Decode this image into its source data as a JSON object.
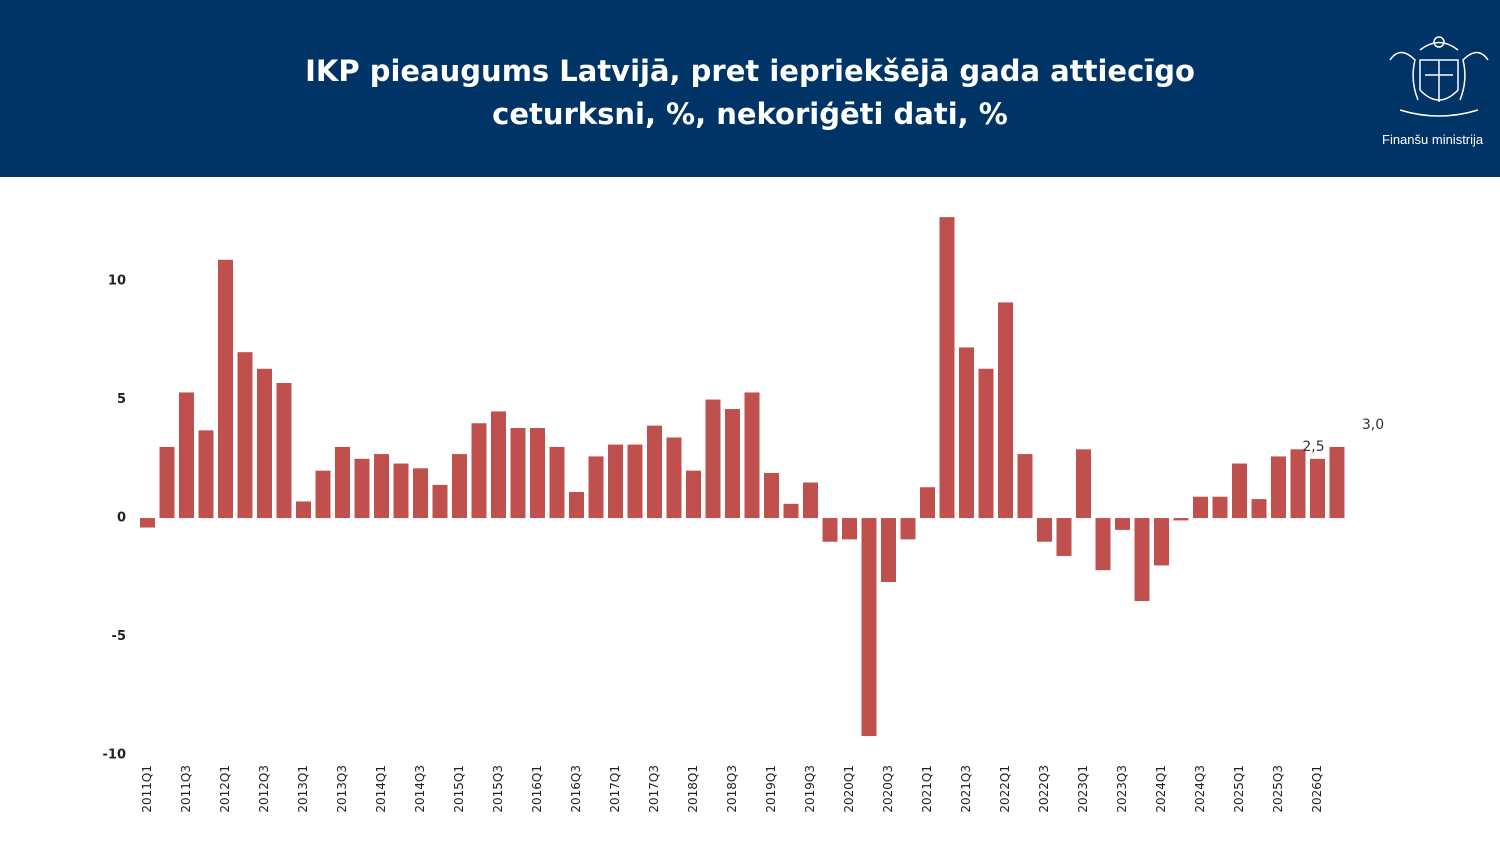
{
  "header": {
    "logo_text": "Finanšu ministrija"
  },
  "chart_data": {
    "type": "bar",
    "title": "IKP pieaugums Latvijā, pret iepriekšējā gada attiecīgo ceturksni, %, nekoriģēti dati, %",
    "categories": [
      "2011Q1",
      null,
      "2011Q3",
      null,
      "2012Q1",
      null,
      "2012Q3",
      null,
      "2013Q1",
      null,
      "2013Q3",
      null,
      "2014Q1",
      null,
      "2014Q3",
      null,
      "2015Q1",
      null,
      "2015Q3",
      null,
      "2016Q1",
      null,
      "2016Q3",
      null,
      "2017Q1",
      null,
      "2017Q3",
      null,
      "2018Q1",
      null,
      "2018Q3",
      null,
      "2019Q1",
      null,
      "2019Q3",
      null,
      "2020Q1",
      null,
      "2020Q3",
      null,
      "2021Q1",
      null,
      "2021Q3",
      null,
      "2022Q1",
      null,
      "2022Q3",
      null,
      "2023Q1",
      null,
      "2023Q3",
      null,
      "2024Q1",
      null,
      "2024Q3",
      null,
      "2025Q1",
      null,
      "2025Q3",
      null,
      "2026Q1",
      null
    ],
    "values": [
      -0.4,
      3.0,
      5.3,
      3.7,
      10.9,
      7.0,
      6.3,
      5.7,
      0.7,
      2.0,
      3.0,
      2.5,
      2.7,
      2.3,
      2.1,
      1.4,
      2.7,
      4.0,
      4.5,
      3.8,
      3.8,
      3.0,
      1.1,
      2.6,
      3.1,
      3.1,
      3.9,
      3.4,
      2.0,
      5.0,
      4.6,
      5.3,
      1.9,
      0.6,
      1.5,
      -1.0,
      -0.9,
      -9.2,
      -2.7,
      -0.9,
      1.3,
      12.7,
      7.2,
      6.3,
      9.1,
      2.7,
      -1.0,
      -1.6,
      2.9,
      -2.2,
      -0.5,
      -3.5,
      -2.0,
      -0.1,
      0.9,
      0.9,
      2.3,
      0.8,
      2.6,
      2.9,
      2.5,
      3.0
    ],
    "value_labels": [
      null,
      null,
      null,
      null,
      null,
      null,
      null,
      null,
      null,
      null,
      null,
      null,
      null,
      null,
      null,
      null,
      null,
      null,
      null,
      null,
      null,
      null,
      null,
      null,
      null,
      null,
      null,
      null,
      null,
      null,
      null,
      null,
      null,
      null,
      null,
      null,
      null,
      null,
      null,
      null,
      null,
      null,
      null,
      null,
      null,
      null,
      null,
      null,
      null,
      null,
      null,
      null,
      null,
      null,
      null,
      null,
      null,
      null,
      null,
      null,
      "2,5",
      "3,0"
    ],
    "color": "#c0504d",
    "ylim": [
      -10,
      13
    ],
    "yticks": [
      -10,
      -5,
      0,
      5,
      10
    ],
    "grid": false
  }
}
